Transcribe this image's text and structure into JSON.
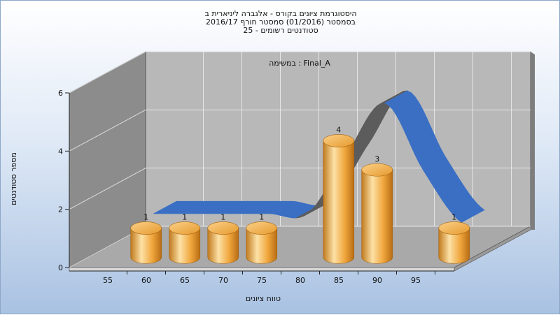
{
  "chart_data": {
    "type": "bar",
    "title_lines": [
      "היסטוגרמת ציונים בקורס - אלגברה ליניארית ב",
      "בסמסטר  (01/2016)  סמסטר חורף 2016/17",
      "סטודנטים רשומים - 25"
    ],
    "annotation": "במשימה : Final_A",
    "xlabel": "טווח ציונים",
    "ylabel": "מספר סטודנטים",
    "x_ticks": [
      "55",
      "60",
      "65",
      "70",
      "75",
      "80",
      "85",
      "90",
      "95"
    ],
    "y_ticks": [
      "0",
      "2",
      "4",
      "6"
    ],
    "ylim": [
      0,
      6
    ],
    "xlim": [
      50,
      100
    ],
    "grid": true,
    "bars": [
      {
        "x": 55,
        "value": 1,
        "label": "1"
      },
      {
        "x": 60,
        "value": 1,
        "label": "1"
      },
      {
        "x": 65,
        "value": 1,
        "label": "1"
      },
      {
        "x": 70,
        "value": 1,
        "label": "1"
      },
      {
        "x": 80,
        "value": 4,
        "label": "4"
      },
      {
        "x": 85,
        "value": 3,
        "label": "3"
      },
      {
        "x": 95,
        "value": 1,
        "label": "1"
      }
    ],
    "curve": {
      "type": "smooth-line",
      "color": "#3a6fc4",
      "x": [
        55,
        60,
        65,
        70,
        75,
        80,
        85,
        90,
        95
      ],
      "y": [
        1,
        1,
        1,
        1,
        1,
        3,
        4.8,
        2.5,
        0.7
      ]
    },
    "colors": {
      "bar": "#f0a63c",
      "bar_light": "#fde1a6",
      "bar_dark": "#b76d14",
      "curve": "#3a6fc4",
      "curve_shadow": "#5c5c5c",
      "back_wall": "#b8b8b8",
      "side_wall": "#8c8c8c",
      "floor": "#a9a9a9"
    }
  }
}
